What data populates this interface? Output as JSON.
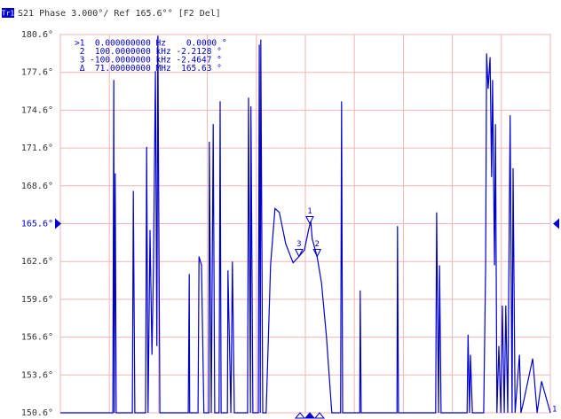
{
  "chart_data": {
    "type": "line",
    "trace_name": "Tr1",
    "title": "S21 Phase 3.000°/ Ref 165.6°° [F2 Del]",
    "reference": 165.6,
    "trace_label": "1",
    "xlim": [
      0,
      10
    ],
    "xticks": [
      0,
      1,
      2,
      3,
      4,
      5,
      6,
      7,
      8,
      9,
      10
    ],
    "ylim": [
      150.6,
      180.6
    ],
    "yticks": [
      {
        "value": 150.6,
        "label": "150.6°"
      },
      {
        "value": 153.6,
        "label": "153.6°"
      },
      {
        "value": 156.6,
        "label": "156.6°"
      },
      {
        "value": 159.6,
        "label": "159.6°"
      },
      {
        "value": 162.6,
        "label": "162.6°"
      },
      {
        "value": 165.6,
        "label": "165.6°"
      },
      {
        "value": 168.6,
        "label": "168.6°"
      },
      {
        "value": 171.6,
        "label": "171.6°"
      },
      {
        "value": 174.6,
        "label": "174.6°"
      },
      {
        "value": 177.6,
        "label": "177.6°"
      },
      {
        "value": 180.6,
        "label": "180.6°"
      }
    ],
    "grid": true,
    "marker_table": [
      ">1  0.000000000 Hz    0.0000 °",
      " 2  100.0000000 kHz -2.2128 °",
      " 3 -100.0000000 kHz -2.4647 °",
      " Δ  71.00000000 MHz  165.63 °"
    ],
    "markers": [
      {
        "label": "1",
        "x": 5.09,
        "y": 165.6
      },
      {
        "label": "2",
        "x": 5.24,
        "y": 163.0
      },
      {
        "label": "3",
        "x": 4.87,
        "y": 163.0
      }
    ],
    "x": [
      0,
      1.07,
      1.09,
      1.1,
      1.12,
      1.14,
      1.47,
      1.49,
      1.52,
      1.74,
      1.76,
      1.79,
      1.83,
      1.87,
      1.9,
      1.94,
      1.97,
      1.99,
      2.03,
      2.61,
      2.63,
      2.64,
      2.81,
      2.83,
      2.88,
      2.93,
      3.03,
      3.04,
      3.08,
      3.12,
      3.15,
      3.24,
      3.26,
      3.28,
      3.41,
      3.42,
      3.48,
      3.51,
      3.55,
      3.82,
      3.84,
      3.88,
      3.89,
      3.93,
      4.04,
      4.06,
      4.08,
      4.09,
      4.13,
      4.2,
      4.29,
      4.38,
      4.47,
      4.6,
      4.75,
      4.87,
      4.98,
      5.07,
      5.11,
      5.14,
      5.24,
      5.33,
      5.43,
      5.54,
      5.72,
      5.74,
      5.76,
      6.11,
      6.12,
      6.14,
      6.87,
      6.88,
      6.9,
      7.66,
      7.68,
      7.72,
      7.74,
      7.77,
      8.3,
      8.32,
      8.35,
      8.37,
      8.41,
      8.64,
      8.68,
      8.7,
      8.73,
      8.77,
      8.8,
      8.82,
      8.86,
      8.88,
      8.91,
      8.95,
      8.99,
      9.02,
      9.06,
      9.09,
      9.13,
      9.18,
      9.22,
      9.24,
      9.28,
      9.37,
      9.4,
      9.46,
      9.64,
      9.73,
      9.82,
      10
    ],
    "series": [
      {
        "name": "Tr1",
        "color": "#0000cc",
        "values": [
          150.6,
          150.6,
          177.0,
          150.6,
          169.6,
          150.6,
          150.6,
          168.2,
          150.6,
          150.6,
          171.7,
          150.6,
          165.1,
          155.2,
          162.3,
          177.7,
          155.9,
          180.5,
          150.6,
          150.6,
          161.6,
          150.6,
          150.6,
          163.0,
          162.3,
          150.6,
          150.6,
          172.1,
          150.6,
          173.5,
          150.6,
          150.6,
          175.3,
          150.6,
          150.6,
          161.9,
          150.6,
          162.6,
          150.6,
          150.6,
          175.6,
          150.6,
          174.9,
          150.6,
          150.6,
          179.8,
          150.6,
          180.2,
          150.6,
          150.6,
          162.3,
          166.8,
          166.5,
          164.0,
          162.5,
          163.0,
          163.5,
          165.2,
          165.8,
          164.4,
          163.0,
          160.9,
          156.7,
          150.6,
          150.6,
          175.3,
          150.6,
          150.6,
          160.3,
          150.6,
          150.6,
          165.4,
          150.6,
          150.6,
          166.5,
          150.6,
          162.3,
          150.6,
          150.6,
          156.8,
          150.6,
          155.2,
          150.6,
          150.6,
          162.3,
          179.1,
          176.3,
          178.8,
          169.3,
          177.0,
          162.3,
          173.5,
          150.6,
          155.9,
          150.6,
          159.1,
          150.6,
          159.1,
          150.6,
          174.2,
          150.6,
          170.0,
          150.6,
          155.2,
          150.6,
          151.6,
          154.9,
          150.6,
          153.1,
          150.6
        ]
      }
    ]
  }
}
